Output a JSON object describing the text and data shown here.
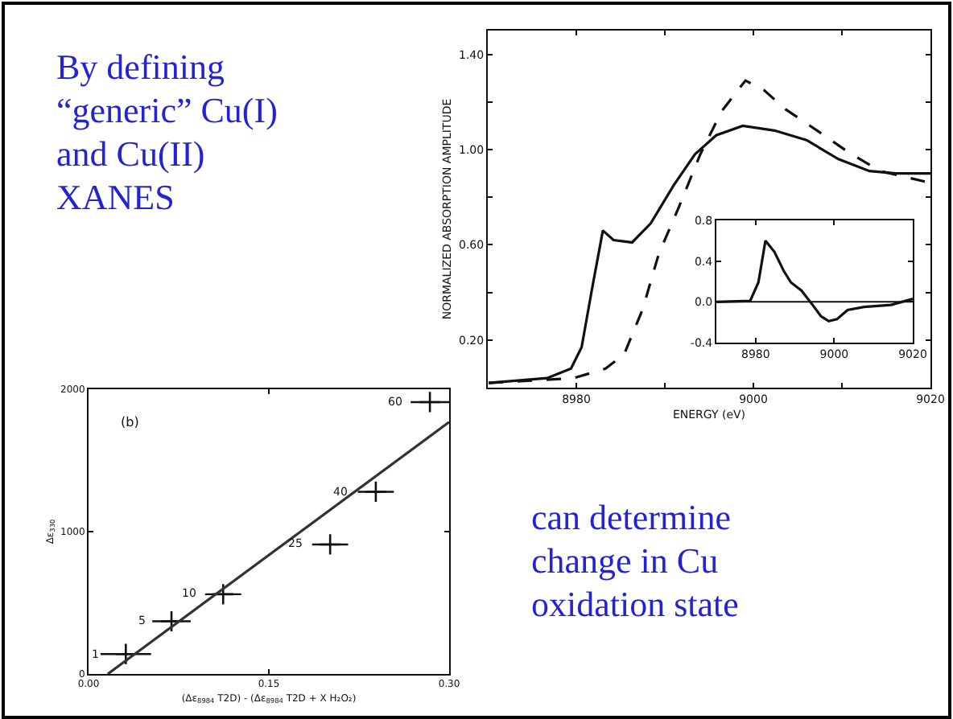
{
  "chart_data": [
    {
      "type": "other",
      "color": "#2323d6",
      "annotations": [
        "By defining\n“generic” Cu(I)\nand Cu(II)\nXANES"
      ]
    },
    {
      "type": "line",
      "xlabel": "ENERGY (eV)",
      "ylabel": "NORMALIZED ABSORPTION AMPLITUDE",
      "xlim": [
        8970,
        9020
      ],
      "ylim": [
        0,
        1.5
      ],
      "xticks": [
        8980,
        {
          "value": 8990,
          "label": null
        },
        9000,
        {
          "value": 9010,
          "label": null
        },
        9020
      ],
      "yticks": [
        {
          "value": 0.2,
          "label": "0.20"
        },
        {
          "value": 0.4,
          "label": null
        },
        {
          "value": 0.6,
          "label": "0.60"
        },
        {
          "value": 0.8,
          "label": null
        },
        {
          "value": 1.0,
          "label": "1.00"
        },
        {
          "value": 1.2,
          "label": null
        },
        {
          "value": 1.4,
          "label": "1.40"
        }
      ],
      "grid": false,
      "marker": "none",
      "series": [
        {
          "color": "#111111",
          "line_style": "solid",
          "x": [
            8970.1,
            8976.7,
            8979.4,
            8980.6,
            8981.8,
            8983.0,
            8984.2,
            8986.3,
            8988.4,
            8991.0,
            8993.4,
            8995.8,
            8998.8,
            9002.4,
            9006.0,
            9009.6,
            9013.1,
            9016.1,
            9020
          ],
          "values": [
            0.02,
            0.04,
            0.08,
            0.17,
            0.42,
            0.66,
            0.62,
            0.61,
            0.69,
            0.85,
            0.98,
            1.06,
            1.1,
            1.08,
            1.04,
            0.96,
            0.91,
            0.9,
            0.9
          ]
        },
        {
          "color": "#111111",
          "line_style": "dashed",
          "x": [
            8970.1,
            8979.7,
            8983.3,
            8985.4,
            8987.5,
            8989.3,
            8991.6,
            8994.0,
            8996.4,
            8999.1,
            9001.2,
            9003.6,
            9007.2,
            9010.7,
            9014.3,
            9020
          ],
          "values": [
            0.02,
            0.04,
            0.08,
            0.14,
            0.33,
            0.56,
            0.76,
            0.98,
            1.16,
            1.29,
            1.25,
            1.17,
            1.08,
            0.99,
            0.91,
            0.86
          ]
        }
      ]
    },
    {
      "type": "line",
      "xlim": [
        8970,
        9020
      ],
      "ylim": [
        -0.4,
        0.8
      ],
      "xticks": [
        8980,
        9000,
        9020
      ],
      "yticks": [
        {
          "value": -0.4,
          "label": "-0.4"
        },
        {
          "value": 0,
          "label": "0.0"
        },
        {
          "value": 0.4,
          "label": "0.4"
        },
        {
          "value": 0.8,
          "label": "0.8"
        }
      ],
      "grid": false,
      "marker": "none",
      "line_style": "solid",
      "ref_lines": [
        {
          "axis": "y",
          "value": 0,
          "color": "#111111"
        }
      ],
      "series": [
        {
          "color": "#111111",
          "x": [
            8970,
            8978.6,
            8980.7,
            8982.5,
            8984.8,
            8987.2,
            8989,
            8991.7,
            8994.5,
            8996.6,
            8998.6,
            9000.7,
            9003.4,
            9007.6,
            9014.5,
            9020
          ],
          "values": [
            0,
            0.01,
            0.19,
            0.6,
            0.49,
            0.3,
            0.19,
            0.11,
            -0.03,
            -0.14,
            -0.19,
            -0.17,
            -0.08,
            -0.05,
            -0.03,
            0.03
          ]
        }
      ]
    },
    {
      "type": "scatter",
      "xlabel": "(Δε$_{8984}$ T2D) - (Δε$_{8984}$ T2D + X H₂O₂)",
      "ylabel": "Δε$_{330}$",
      "xlim": [
        0,
        0.3
      ],
      "ylim": [
        0,
        2000
      ],
      "xticks": [
        {
          "value": 0,
          "label": "0.00"
        },
        0.15,
        {
          "value": 0.3,
          "label": "0.30"
        }
      ],
      "yticks": [
        0,
        1000,
        2000
      ],
      "grid": false,
      "annotations": [
        "(b)",
        {
          "text": "1",
          "x": 0.031,
          "y": 140
        },
        {
          "text": "5",
          "x": 0.069,
          "y": 370
        },
        {
          "text": "10",
          "x": 0.112,
          "y": 560
        },
        {
          "text": "25",
          "x": 0.201,
          "y": 910
        },
        {
          "text": "40",
          "x": 0.239,
          "y": 1280
        },
        {
          "text": "60",
          "x": 0.284,
          "y": 1910
        }
      ],
      "series": [
        {
          "type": "scatter",
          "marker": "cross",
          "color": "#111111",
          "x": [
            0.031,
            0.069,
            0.112,
            0.201,
            0.239,
            0.284
          ],
          "values": [
            140,
            370,
            560,
            910,
            1280,
            1910
          ],
          "xerrors": [
            0.021,
            0.016,
            0.015,
            0.015,
            0.015,
            0.016
          ]
        },
        {
          "type": "line",
          "marker": "none",
          "color": "#333333",
          "x": [
            0.016,
            0.3
          ],
          "values": [
            0,
            1770
          ]
        }
      ]
    },
    {
      "type": "other",
      "color": "#2323d6",
      "annotations": [
        "can determine\nchange in Cu\noxidation state"
      ]
    }
  ]
}
